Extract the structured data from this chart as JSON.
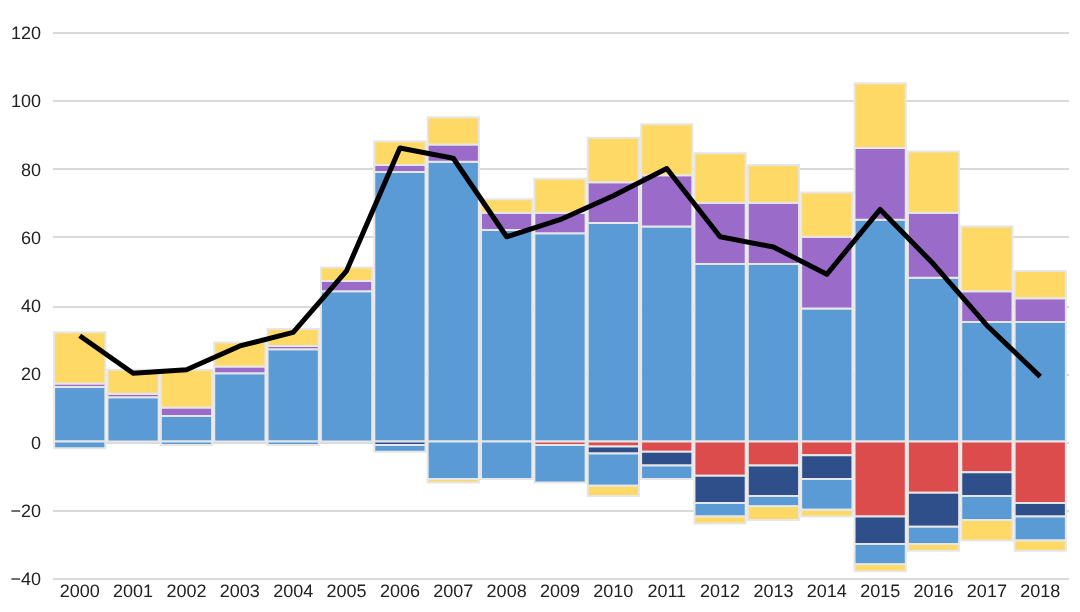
{
  "chart_data": {
    "type": "bar",
    "stacked": true,
    "categories": [
      "2000",
      "2001",
      "2002",
      "2003",
      "2004",
      "2005",
      "2006",
      "2007",
      "2008",
      "2009",
      "2010",
      "2011",
      "2012",
      "2013",
      "2014",
      "2015",
      "2016",
      "2017",
      "2018"
    ],
    "series": [
      {
        "color": "#5b9bd5",
        "values": [
          16,
          13,
          7.5,
          20,
          27,
          44,
          79,
          82,
          62,
          61,
          64,
          63,
          52,
          52,
          39,
          65,
          48,
          35,
          35
        ]
      },
      {
        "color": "#9b6bc9",
        "values": [
          1,
          1,
          2.5,
          2,
          1,
          3,
          2,
          5,
          5,
          6,
          12,
          15,
          18,
          18,
          21,
          21,
          19,
          9,
          7
        ]
      },
      {
        "color": "#ffd966",
        "values": [
          15,
          7,
          11,
          7,
          5,
          4,
          7,
          8,
          4,
          10,
          13,
          15,
          14.5,
          11,
          13,
          19,
          18,
          19,
          8
        ]
      },
      {
        "color": "#dc4c4c",
        "values": [
          null,
          null,
          null,
          null,
          null,
          null,
          null,
          null,
          null,
          -1,
          -1.5,
          -3,
          -10,
          -7,
          -4,
          -22,
          -15,
          -9,
          -18
        ]
      },
      {
        "color": "#2e4f8a",
        "values": [
          null,
          null,
          null,
          null,
          null,
          null,
          -1,
          null,
          null,
          null,
          -2,
          -4,
          -8,
          -9,
          -7,
          -8,
          -10,
          -7,
          -4
        ]
      },
      {
        "color": "#5b9bd5",
        "values": [
          -2,
          null,
          -1,
          null,
          -1,
          null,
          -2,
          -11,
          -11,
          -11,
          -9.5,
          -4,
          -4,
          -3,
          -9,
          -6,
          -5,
          -7,
          -7
        ]
      },
      {
        "color": "#ffd966",
        "values": [
          null,
          null,
          null,
          null,
          null,
          null,
          null,
          -1,
          null,
          null,
          -3,
          null,
          -2,
          -4,
          -2,
          -2,
          -2,
          -6,
          -3
        ]
      },
      {
        "type": "line",
        "color": "#000000",
        "values": [
          31,
          20,
          21,
          28,
          32,
          50,
          86,
          83,
          60,
          65,
          72,
          80,
          60,
          57,
          49,
          68,
          52,
          34,
          19
        ]
      }
    ],
    "ylim": [
      -40,
      120
    ],
    "yticks": [
      -40,
      -20,
      0,
      20,
      40,
      60,
      80,
      100,
      120
    ],
    "grid": "y",
    "legend": false,
    "marker": "none",
    "line_style": "solid"
  }
}
